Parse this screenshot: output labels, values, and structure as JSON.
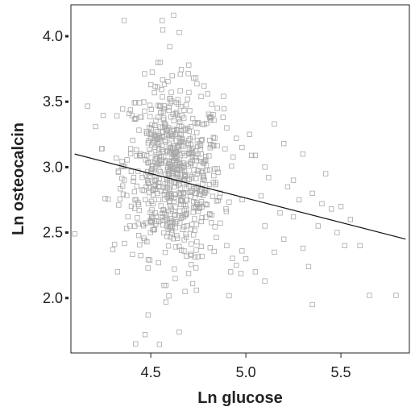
{
  "chart_data": {
    "type": "scatter",
    "title": "",
    "xlabel": "Ln glucose",
    "ylabel": "Ln osteocalcin",
    "xlim": [
      4.08,
      5.86
    ],
    "ylim": [
      1.58,
      4.24
    ],
    "x_ticks": [
      4.5,
      5.0,
      5.5
    ],
    "x_tick_labels": [
      "4.5",
      "5.0",
      "5.5"
    ],
    "y_ticks": [
      2.0,
      2.5,
      3.0,
      3.5,
      4.0
    ],
    "y_tick_labels": [
      "2.0",
      "2.5",
      "3.0",
      "3.5",
      "4.0"
    ],
    "grid": false,
    "legend": "none",
    "colors": {
      "points": "#a8a8a8",
      "fit_line": "#111111",
      "axes": "#222222"
    },
    "fit_line": {
      "x": [
        4.1,
        5.84
      ],
      "y": [
        3.1,
        2.45
      ]
    },
    "point_cluster": {
      "x_center": 4.62,
      "y_center": 2.95,
      "x_spread": 0.13,
      "y_spread": 0.33,
      "count": 700
    },
    "points": [
      [
        4.1,
        2.49
      ],
      [
        4.21,
        3.31
      ],
      [
        4.26,
        2.76
      ],
      [
        4.3,
        2.37
      ],
      [
        4.31,
        2.41
      ],
      [
        4.33,
        2.96
      ],
      [
        4.36,
        4.12
      ],
      [
        4.38,
        2.62
      ],
      [
        4.39,
        2.55
      ],
      [
        4.42,
        1.65
      ],
      [
        4.47,
        1.72
      ],
      [
        4.56,
        4.12
      ],
      [
        4.62,
        4.16
      ],
      [
        4.65,
        4.03
      ],
      [
        4.6,
        3.92
      ],
      [
        4.55,
        3.8
      ],
      [
        4.7,
        3.78
      ],
      [
        4.5,
        3.63
      ],
      [
        4.58,
        1.97
      ],
      [
        4.65,
        1.74
      ],
      [
        4.68,
        2.05
      ],
      [
        4.72,
        2.11
      ],
      [
        4.74,
        2.06
      ],
      [
        4.78,
        3.62
      ],
      [
        4.8,
        3.56
      ],
      [
        4.82,
        3.48
      ],
      [
        4.85,
        3.45
      ],
      [
        4.88,
        3.38
      ],
      [
        4.9,
        3.3
      ],
      [
        4.95,
        3.22
      ],
      [
        4.98,
        3.15
      ],
      [
        5.02,
        3.25
      ],
      [
        5.05,
        3.09
      ],
      [
        5.1,
        3.0
      ],
      [
        5.12,
        2.92
      ],
      [
        5.15,
        3.33
      ],
      [
        5.2,
        3.18
      ],
      [
        5.22,
        2.85
      ],
      [
        5.25,
        2.9
      ],
      [
        5.28,
        2.75
      ],
      [
        5.3,
        3.1
      ],
      [
        5.35,
        2.8
      ],
      [
        5.4,
        2.72
      ],
      [
        5.45,
        2.68
      ],
      [
        5.5,
        2.7
      ],
      [
        5.52,
        2.4
      ],
      [
        5.55,
        2.6
      ],
      [
        5.3,
        2.38
      ],
      [
        5.2,
        2.45
      ],
      [
        5.1,
        2.55
      ],
      [
        5.15,
        2.35
      ],
      [
        5.0,
        2.3
      ],
      [
        4.95,
        2.25
      ],
      [
        4.9,
        2.4
      ],
      [
        5.05,
        2.2
      ],
      [
        5.33,
        2.24
      ],
      [
        5.38,
        2.55
      ],
      [
        5.48,
        2.5
      ],
      [
        5.6,
        2.4
      ],
      [
        5.65,
        2.02
      ],
      [
        5.79,
        2.02
      ],
      [
        5.86,
        2.54
      ],
      [
        5.35,
        1.95
      ],
      [
        5.1,
        2.13
      ],
      [
        4.98,
        2.36
      ],
      [
        5.25,
        2.62
      ],
      [
        5.42,
        2.95
      ],
      [
        5.08,
        2.78
      ],
      [
        5.18,
        2.65
      ],
      [
        4.92,
        2.2
      ]
    ]
  }
}
